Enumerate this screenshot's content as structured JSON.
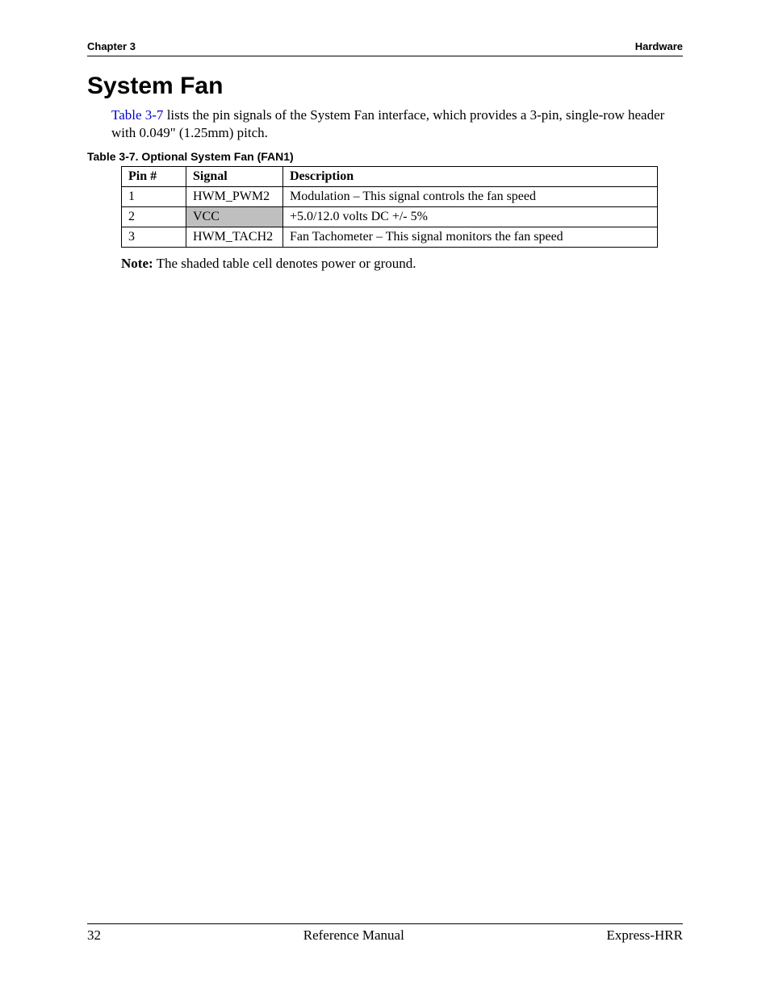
{
  "header": {
    "left": "Chapter 3",
    "right": "Hardware"
  },
  "title": "System Fan",
  "intro": {
    "link_text": "Table 3-7",
    "rest": " lists the pin signals of the System Fan interface, which provides a 3-pin, single-row header with 0.049\" (1.25mm) pitch."
  },
  "table": {
    "caption": "Table 3-7.   Optional System Fan (FAN1)",
    "columns": [
      "Pin #",
      "Signal",
      "Description"
    ],
    "rows": [
      {
        "pin": "1",
        "signal": "HWM_PWM2",
        "desc": "Modulation – This signal controls the fan speed",
        "shaded": false
      },
      {
        "pin": "2",
        "signal": "VCC",
        "desc": "+5.0/12.0 volts DC +/- 5%",
        "shaded": true
      },
      {
        "pin": "3",
        "signal": "HWM_TACH2",
        "desc": "Fan Tachometer – This signal monitors the fan speed",
        "shaded": false
      }
    ]
  },
  "note": {
    "label": "Note:",
    "text": "  The shaded table cell denotes power or ground."
  },
  "footer": {
    "page": "32",
    "center": "Reference Manual",
    "right": "Express-HRR"
  },
  "colors": {
    "link": "#0000cc",
    "shaded_bg": "#bfbfbf",
    "text": "#000000",
    "background": "#ffffff"
  }
}
